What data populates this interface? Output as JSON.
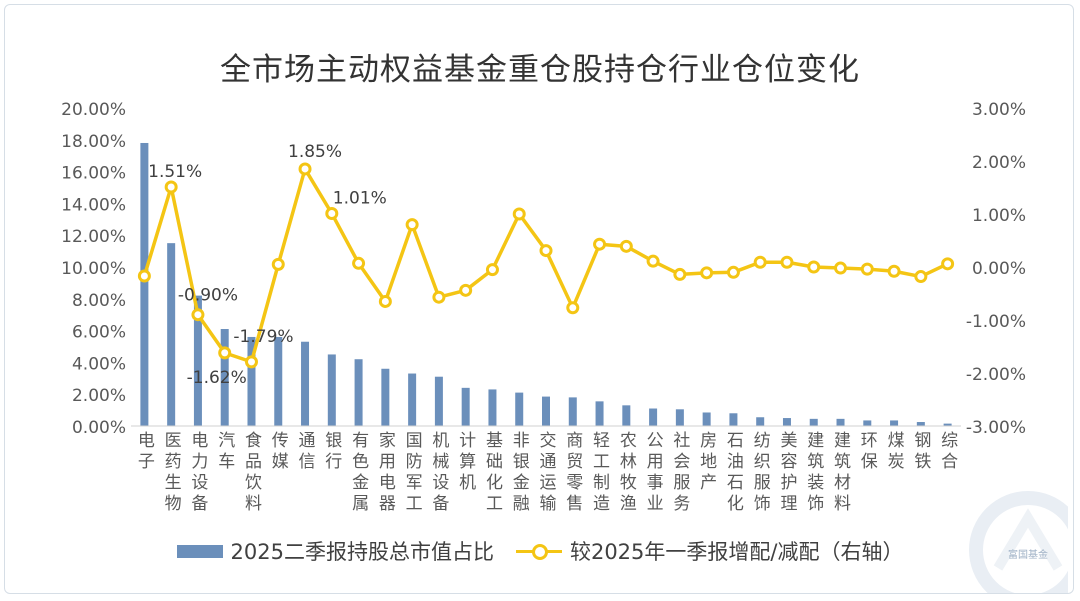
{
  "chart_data": {
    "type": "bar+line",
    "title": "全市场主动权益基金重仓股持仓行业仓位变化",
    "categories": [
      "电子",
      "医药生物",
      "电力设备",
      "汽车",
      "食品饮料",
      "传媒",
      "通信",
      "银行",
      "有色金属",
      "家用电器",
      "国防军工",
      "机械设备",
      "计算机",
      "基础化工",
      "非银金融",
      "交通运输",
      "商贸零售",
      "轻工制造",
      "农林牧渔",
      "公用事业",
      "社会服务",
      "房地产",
      "石油石化",
      "纺织服饰",
      "美容护理",
      "建筑装饰",
      "建筑材料",
      "环保",
      "煤炭",
      "钢铁",
      "综合"
    ],
    "series": [
      {
        "name": "2025二季报持股总市值占比",
        "type": "bar",
        "axis": "left",
        "color": "#6b8fbb",
        "values": [
          17.8,
          11.5,
          8.2,
          6.1,
          5.6,
          5.6,
          5.3,
          4.5,
          4.2,
          3.6,
          3.3,
          3.1,
          2.4,
          2.3,
          2.1,
          1.85,
          1.8,
          1.55,
          1.3,
          1.1,
          1.05,
          0.85,
          0.8,
          0.55,
          0.5,
          0.45,
          0.45,
          0.35,
          0.35,
          0.25,
          0.15
        ]
      },
      {
        "name": "较2025年一季报增配/减配（右轴）",
        "type": "line",
        "axis": "right",
        "color": "#f4c514",
        "values": [
          -0.17,
          1.51,
          -0.9,
          -1.62,
          -1.79,
          0.05,
          1.85,
          1.01,
          0.07,
          -0.65,
          0.8,
          -0.57,
          -0.44,
          -0.05,
          1.0,
          0.31,
          -0.77,
          0.43,
          0.39,
          0.11,
          -0.14,
          -0.11,
          -0.1,
          0.09,
          0.09,
          0.0,
          -0.02,
          -0.04,
          -0.08,
          -0.18,
          0.06
        ]
      }
    ],
    "left_axis": {
      "min": 0,
      "max": 20,
      "step": 2,
      "labels": [
        "0.00%",
        "2.00%",
        "4.00%",
        "6.00%",
        "8.00%",
        "10.00%",
        "12.00%",
        "14.00%",
        "16.00%",
        "18.00%",
        "20.00%"
      ]
    },
    "right_axis": {
      "min": -3,
      "max": 3,
      "step": 1,
      "labels": [
        "-3.00%",
        "-2.00%",
        "-1.00%",
        "0.00%",
        "1.00%",
        "2.00%",
        "3.00%"
      ]
    },
    "data_labels": [
      {
        "index": 1,
        "text": "1.51%"
      },
      {
        "index": 2,
        "text": "-0.90%"
      },
      {
        "index": 3,
        "text": "-1.62%"
      },
      {
        "index": 4,
        "text": "-1.79%"
      },
      {
        "index": 6,
        "text": "1.85%"
      },
      {
        "index": 7,
        "text": "1.01%"
      }
    ],
    "legend_position": "bottom",
    "grid": false
  },
  "watermark": {
    "text": "富国基金"
  }
}
